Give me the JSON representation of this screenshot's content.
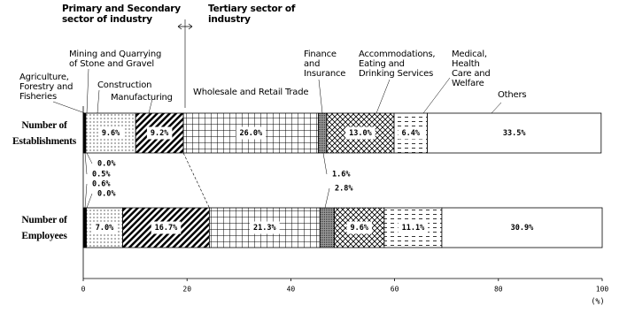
{
  "chart_data": {
    "type": "stacked_bar",
    "orientation": "horizontal",
    "annotations": [
      "Primary and Secondary\nsector of industry",
      "Tertiary sector of\nindustry"
    ],
    "categories": [
      "Number of\nEstablishments",
      "Number of\nEmployees"
    ],
    "series": [
      {
        "name": "Agriculture,\nForestry and\nFisheries",
        "pattern": "black",
        "values": [
          0.5,
          0.6
        ],
        "value_labels": [
          "0.5%",
          "0.6%"
        ]
      },
      {
        "name": "Mining and Quarrying\nof Stone and Gravel",
        "pattern": "white",
        "values": [
          0.0,
          0.0
        ],
        "value_labels": [
          "0.0%",
          "0.0%"
        ]
      },
      {
        "name": "Construction",
        "pattern": "dots",
        "values": [
          9.6,
          7.0
        ],
        "value_labels": [
          "9.6%",
          "7.0%"
        ]
      },
      {
        "name": "Manufacturing",
        "pattern": "diag",
        "values": [
          9.2,
          16.7
        ],
        "value_labels": [
          "9.2%",
          "16.7%"
        ]
      },
      {
        "name": "Wholesale and Retail Trade",
        "pattern": "grid",
        "values": [
          26.0,
          21.3
        ],
        "value_labels": [
          "26.0%",
          "21.3%"
        ]
      },
      {
        "name": "Finance\nand\nInsurance",
        "pattern": "dark",
        "values": [
          1.6,
          2.8
        ],
        "value_labels": [
          "1.6%",
          "2.8%"
        ]
      },
      {
        "name": "Accommodations,\nEating and\nDrinking Services",
        "pattern": "cross",
        "values": [
          13.0,
          9.6
        ],
        "value_labels": [
          "13.0%",
          "9.6%"
        ]
      },
      {
        "name": "Medical,\nHealth\nCare and\nWelfare",
        "pattern": "dash",
        "values": [
          6.4,
          11.1
        ],
        "value_labels": [
          "6.4%",
          "11.1%"
        ]
      },
      {
        "name": "Others",
        "pattern": "white",
        "values": [
          33.5,
          30.9
        ],
        "value_labels": [
          "33.5%",
          "30.9%"
        ]
      }
    ],
    "xlim": [
      0,
      100
    ],
    "xticks": [
      0,
      20,
      40,
      60,
      80,
      100
    ],
    "x_label": "(%)"
  }
}
